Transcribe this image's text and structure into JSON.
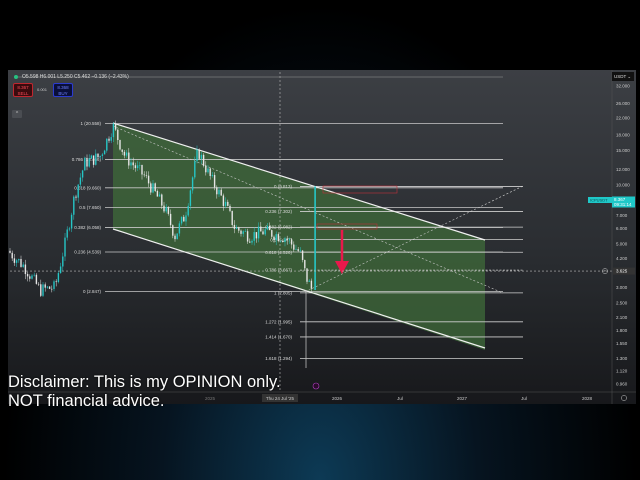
{
  "header": {
    "ohlc": "O5.598 H6.001 L5.250 C5.462 −0.136 (−2.43%)"
  },
  "trade": {
    "sell_price": "8.367",
    "sell_label": "SELL",
    "spread": "0.001",
    "buy_price": "8.368",
    "buy_label": "BUY"
  },
  "price_axis": {
    "currency": "USDT ⌄",
    "ticks": [
      32,
      26,
      22,
      18,
      15,
      12,
      10,
      7,
      6,
      5,
      4.2,
      3,
      2.5,
      2.1,
      1.8,
      1.55,
      1.3,
      1.12,
      0.96
    ],
    "tick_labels": [
      "32.000",
      "26.000",
      "22.000",
      "18.000",
      "15.000",
      "12.000",
      "10.000",
      "7.000",
      "6.000",
      "5.000",
      "4.200",
      "3.000",
      "2.500",
      "2.100",
      "1.800",
      "1.550",
      "1.300",
      "1.120",
      "0.960"
    ],
    "crosshair_price": "3.625",
    "symbol": "ICPUSDT",
    "last_price": "8.367",
    "countdown": "09:31:14"
  },
  "time_axis": {
    "labels": [
      "2025",
      "2026",
      "Jul",
      "2027",
      "Jul",
      "2028"
    ],
    "crosshair_date": "Thu 24 Jul '25"
  },
  "fib_1": [
    {
      "label": "1 (20.558)",
      "price": 20.558
    },
    {
      "label": "0.786 (13.466)",
      "price": 13.466
    },
    {
      "label": "0.618 (9.660)",
      "price": 9.66
    },
    {
      "label": "0.5 (7.650)",
      "price": 7.65
    },
    {
      "label": "0.382 (6.058)",
      "price": 6.058
    },
    {
      "label": "0.236 (4.539)",
      "price": 4.539
    },
    {
      "label": "0 (2.847)",
      "price": 2.847
    }
  ],
  "fib_2": [
    {
      "label": "0 (9.813)",
      "price": 9.813
    },
    {
      "label": "0.236 (7.302)",
      "price": 7.302
    },
    {
      "label": "0.382 (6.082)",
      "price": 6.082
    },
    {
      "label": "0.5 (5.247)",
      "price": 5.247
    },
    {
      "label": "0.618 (4.526)",
      "price": 4.526
    },
    {
      "label": "0.786 (3.667)",
      "price": 3.667
    },
    {
      "label": "1 (2.805)",
      "price": 2.805
    },
    {
      "label": "1.272 (1.995)",
      "price": 1.995
    },
    {
      "label": "1.414 (1.670)",
      "price": 1.67
    },
    {
      "label": "1.618 (1.294)",
      "price": 1.294
    }
  ],
  "disclaimer": {
    "line1": "Disclaimer: This is my OPINION only.",
    "line2": "NOT financial advice."
  },
  "colors": {
    "up": "#26c6c6",
    "down": "#e6e6e6",
    "channel_fill": "#3f6b3a",
    "arrow": "#e8194b",
    "last_price_bg": "#1fc8c8"
  }
}
